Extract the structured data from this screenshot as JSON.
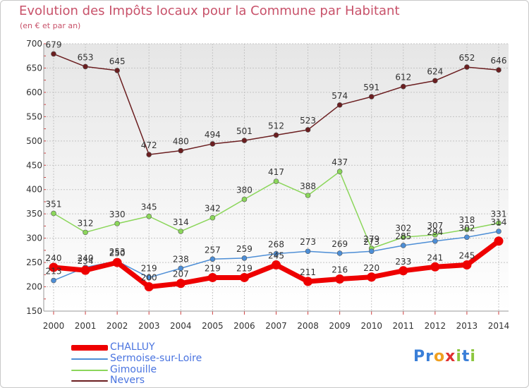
{
  "title": "Evolution des Impôts locaux pour la Commune par Habitant",
  "subtitle": "(en € et par an)",
  "logo_text": "Proxiti",
  "chart_data": {
    "type": "line",
    "title": "Evolution des Impôts locaux pour la Commune par Habitant",
    "subtitle": "(en € et par an)",
    "xlabel": "",
    "ylabel": "",
    "ylim": [
      150,
      700
    ],
    "yticks": [
      150,
      200,
      250,
      300,
      350,
      400,
      450,
      500,
      550,
      600,
      650,
      700
    ],
    "grid": true,
    "legend_position": "bottom-left",
    "x": [
      "2000",
      "2001",
      "2002",
      "2003",
      "2004",
      "2005",
      "2006",
      "2007",
      "2008",
      "2009",
      "2010",
      "2011",
      "2012",
      "2013",
      "2014"
    ],
    "series": [
      {
        "name": "CHALLUY",
        "color": "#ee0000",
        "values": [
          240,
          234,
          250,
          200,
          207,
          219,
          219,
          245,
          211,
          216,
          220,
          233,
          241,
          245,
          294
        ],
        "labels": [
          "240",
          "234",
          "250",
          "200",
          "207",
          "219",
          "219",
          "245",
          "211",
          "216",
          "220",
          "233",
          "241",
          "245",
          ""
        ]
      },
      {
        "name": "Sermoise-sur-Loire",
        "color": "#4d8ed6",
        "values": [
          213,
          240,
          253,
          219,
          238,
          257,
          259,
          268,
          273,
          269,
          273,
          285,
          294,
          302,
          314
        ],
        "labels": [
          "213",
          "240",
          "253",
          "219",
          "238",
          "257",
          "259",
          "268",
          "273",
          "269",
          "273",
          "285",
          "294",
          "302",
          "314"
        ]
      },
      {
        "name": "Gimouille",
        "color": "#8bd65a",
        "values": [
          351,
          312,
          330,
          345,
          314,
          342,
          380,
          417,
          388,
          437,
          279,
          302,
          307,
          318,
          331
        ],
        "labels": [
          "351",
          "312",
          "330",
          "345",
          "314",
          "342",
          "380",
          "417",
          "388",
          "437",
          "279",
          "302",
          "307",
          "318",
          "331"
        ]
      },
      {
        "name": "Nevers",
        "color": "#6b1e20",
        "values": [
          679,
          653,
          645,
          472,
          480,
          494,
          501,
          512,
          523,
          574,
          591,
          612,
          624,
          652,
          646
        ],
        "labels": [
          "679",
          "653",
          "645",
          "472",
          "480",
          "494",
          "501",
          "512",
          "523",
          "574",
          "591",
          "612",
          "624",
          "652",
          "646"
        ]
      }
    ]
  }
}
